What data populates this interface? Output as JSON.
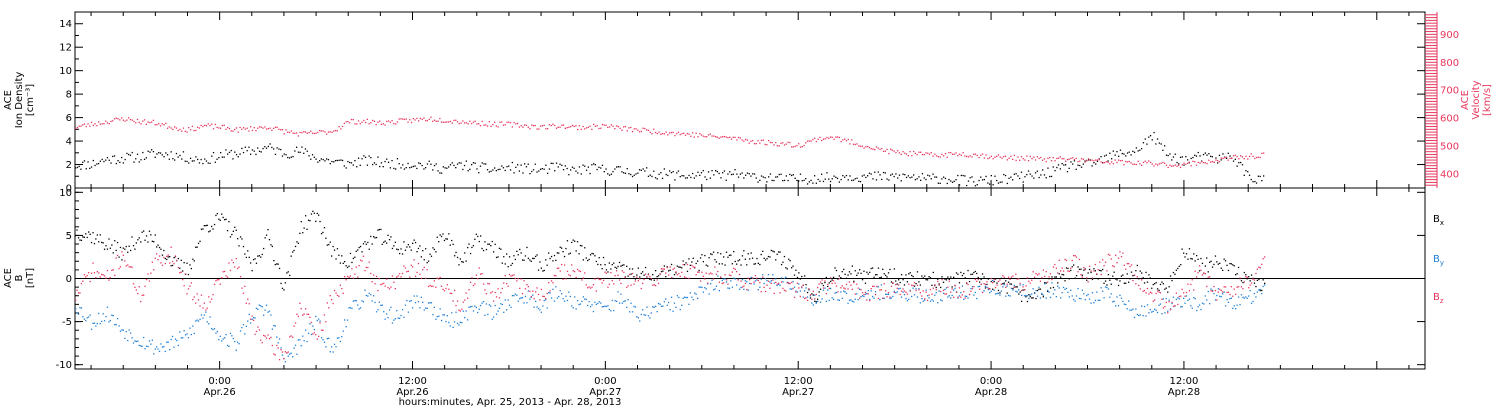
{
  "chart_data": [
    {
      "type": "scatter",
      "panel": "plasma",
      "ylabel": [
        "ACE",
        "Ion Density",
        "[cm⁻³]"
      ],
      "ylim": [
        0,
        15
      ],
      "yticks": [
        "0",
        "2",
        "4",
        "6",
        "8",
        "10",
        "12",
        "14"
      ],
      "y2label": [
        "ACE",
        "Velocity",
        "[km/s]"
      ],
      "y2lim": [
        350,
        980
      ],
      "y2ticks": [
        "400",
        "500",
        "600",
        "700",
        "800",
        "900"
      ],
      "xlim_hours": [
        -9,
        75
      ],
      "series": [
        {
          "name": "Ion Density",
          "color": "#000000",
          "axis": "left",
          "x_hours": [
            -9,
            -8,
            -7,
            -6,
            -5,
            -4,
            -3,
            -2,
            -1,
            0,
            1,
            2,
            3,
            4,
            5,
            6,
            7,
            8,
            9,
            10,
            11,
            12,
            13,
            14,
            15,
            16,
            17,
            18,
            19,
            20,
            21,
            22,
            23,
            24,
            25,
            26,
            27,
            28,
            29,
            30,
            31,
            32,
            33,
            34,
            35,
            36,
            37,
            38,
            39,
            40,
            41,
            42,
            43,
            44,
            45,
            46,
            47,
            48,
            49,
            50,
            51,
            52,
            53,
            54,
            55,
            56,
            57,
            58,
            59,
            60,
            61,
            62,
            63,
            64,
            65
          ],
          "y": [
            2.0,
            2.1,
            2.5,
            2.6,
            2.7,
            3.0,
            2.9,
            2.6,
            2.4,
            2.8,
            3.0,
            3.2,
            3.5,
            3.0,
            3.2,
            2.6,
            2.3,
            2.1,
            2.4,
            2.2,
            2.1,
            2.1,
            1.9,
            1.7,
            2.0,
            1.8,
            1.6,
            1.8,
            1.7,
            1.6,
            1.8,
            1.5,
            1.7,
            1.6,
            1.5,
            1.4,
            1.3,
            1.2,
            1.1,
            1.2,
            1.1,
            1.2,
            1.0,
            1.0,
            0.8,
            0.8,
            0.9,
            0.9,
            1.1,
            1.0,
            1.0,
            1.0,
            1.0,
            0.8,
            0.9,
            0.7,
            0.6,
            0.7,
            0.8,
            1.0,
            1.2,
            1.5,
            2.0,
            2.0,
            2.5,
            3.0,
            3.2,
            4.5,
            2.8,
            2.4,
            2.7,
            2.5,
            2.8,
            1.0,
            0.7
          ]
        },
        {
          "name": "Velocity",
          "color": "#e8365d",
          "axis": "right",
          "x_hours": [
            -9,
            -8,
            -7,
            -6,
            -5,
            -4,
            -3,
            -2,
            -1,
            0,
            1,
            2,
            3,
            4,
            5,
            6,
            7,
            8,
            9,
            10,
            11,
            12,
            13,
            14,
            15,
            16,
            17,
            18,
            19,
            20,
            21,
            22,
            23,
            24,
            25,
            26,
            27,
            28,
            29,
            30,
            31,
            32,
            33,
            34,
            35,
            36,
            37,
            38,
            39,
            40,
            41,
            42,
            43,
            44,
            45,
            46,
            47,
            48,
            49,
            50,
            51,
            52,
            53,
            54,
            55,
            56,
            57,
            58,
            59,
            60,
            61,
            62,
            63,
            64,
            65
          ],
          "y": [
            570,
            580,
            590,
            600,
            590,
            585,
            570,
            560,
            575,
            570,
            560,
            565,
            570,
            555,
            545,
            550,
            555,
            590,
            590,
            585,
            590,
            595,
            600,
            595,
            590,
            585,
            580,
            580,
            575,
            570,
            575,
            570,
            570,
            575,
            565,
            560,
            555,
            550,
            545,
            540,
            535,
            530,
            520,
            515,
            510,
            505,
            525,
            535,
            520,
            505,
            490,
            480,
            475,
            470,
            470,
            475,
            470,
            465,
            460,
            460,
            455,
            455,
            455,
            450,
            445,
            445,
            440,
            440,
            435,
            435,
            445,
            450,
            460,
            465,
            470
          ]
        }
      ]
    },
    {
      "type": "scatter",
      "panel": "magnetic-field",
      "ylabel": [
        "ACE",
        "B",
        "[nT]"
      ],
      "ylim": [
        -10.5,
        10.5
      ],
      "yticks": [
        "-10",
        "-5",
        "0",
        "5",
        "10"
      ],
      "xlim_hours": [
        -9,
        75
      ],
      "zero_line": true,
      "series": [
        {
          "name": "B",
          "subscript": "x",
          "color": "#000000",
          "x_hours": [
            -9,
            -8,
            -7,
            -6,
            -5,
            -4,
            -3,
            -2,
            -1,
            0,
            1,
            2,
            3,
            4,
            5,
            6,
            7,
            8,
            9,
            10,
            11,
            12,
            13,
            14,
            15,
            16,
            17,
            18,
            19,
            20,
            21,
            22,
            23,
            24,
            25,
            26,
            27,
            28,
            29,
            30,
            31,
            32,
            33,
            34,
            35,
            36,
            37,
            38,
            39,
            40,
            41,
            42,
            43,
            44,
            45,
            46,
            47,
            48,
            49,
            50,
            51,
            52,
            53,
            54,
            55,
            56,
            57,
            58,
            59,
            60,
            61,
            62,
            63,
            64,
            65
          ],
          "y": [
            5.5,
            5.0,
            4.0,
            3.0,
            5.0,
            4.5,
            2.0,
            1.0,
            6.0,
            7.0,
            5.0,
            1.5,
            5.0,
            -1.0,
            6.0,
            7.5,
            3.0,
            2.0,
            4.0,
            5.0,
            3.5,
            4.0,
            2.5,
            5.5,
            2.0,
            4.5,
            3.5,
            2.0,
            3.0,
            1.5,
            3.0,
            4.0,
            2.5,
            1.5,
            1.0,
            0.5,
            0.5,
            0.8,
            1.5,
            2.0,
            2.5,
            2.5,
            2.5,
            2.6,
            2.5,
            0.5,
            -2.0,
            0.5,
            1.0,
            0.0,
            1.0,
            0.3,
            0.0,
            0.2,
            -0.5,
            0.2,
            0.0,
            -0.5,
            -1.0,
            -2.0,
            -1.5,
            0.0,
            0.8,
            0.5,
            0.2,
            0.0,
            1.0,
            -0.5,
            -1.0,
            3.5,
            1.5,
            2.0,
            1.0,
            0.0,
            -1.0
          ]
        },
        {
          "name": "B",
          "subscript": "y",
          "color": "#1f7fd6",
          "x_hours": [
            -9,
            -8,
            -7,
            -6,
            -5,
            -4,
            -3,
            -2,
            -1,
            0,
            1,
            2,
            3,
            4,
            5,
            6,
            7,
            8,
            9,
            10,
            11,
            12,
            13,
            14,
            15,
            16,
            17,
            18,
            19,
            20,
            21,
            22,
            23,
            24,
            25,
            26,
            27,
            28,
            29,
            30,
            31,
            32,
            33,
            34,
            35,
            36,
            37,
            38,
            39,
            40,
            41,
            42,
            43,
            44,
            45,
            46,
            47,
            48,
            49,
            50,
            51,
            52,
            53,
            54,
            55,
            56,
            57,
            58,
            59,
            60,
            61,
            62,
            63,
            64,
            65
          ],
          "y": [
            -3.0,
            -5.0,
            -4.0,
            -6.0,
            -7.0,
            -8.0,
            -7.5,
            -6.5,
            -4.0,
            -6.5,
            -7.5,
            -4.0,
            -3.5,
            -9.5,
            -7.5,
            -5.0,
            -8.5,
            -4.0,
            -2.0,
            -3.5,
            -4.5,
            -2.5,
            -3.0,
            -5.0,
            -4.5,
            -3.0,
            -4.0,
            -2.5,
            -2.0,
            -3.0,
            -1.5,
            -2.5,
            -3.0,
            -3.5,
            -2.0,
            -4.5,
            -3.5,
            -3.0,
            -2.5,
            -1.5,
            -0.5,
            -0.2,
            -0.5,
            -0.3,
            0.0,
            -1.0,
            -2.5,
            -1.5,
            -2.0,
            -1.5,
            -1.5,
            -2.0,
            -1.8,
            -2.0,
            -1.8,
            -1.5,
            -1.5,
            -1.0,
            -1.5,
            -1.5,
            -1.5,
            -1.2,
            -1.5,
            -2.5,
            -1.5,
            -2.5,
            -4.0,
            -3.5,
            -3.0,
            -2.5,
            -3.0,
            -1.5,
            -3.0,
            -2.0,
            -1.5
          ]
        },
        {
          "name": "B",
          "subscript": "z",
          "color": "#e8365d",
          "x_hours": [
            -9,
            -8,
            -7,
            -6,
            -5,
            -4,
            -3,
            -2,
            -1,
            0,
            1,
            2,
            3,
            4,
            5,
            6,
            7,
            8,
            9,
            10,
            11,
            12,
            13,
            14,
            15,
            16,
            17,
            18,
            19,
            20,
            21,
            22,
            23,
            24,
            25,
            26,
            27,
            28,
            29,
            30,
            31,
            32,
            33,
            34,
            35,
            36,
            37,
            38,
            39,
            40,
            41,
            42,
            43,
            44,
            45,
            46,
            47,
            48,
            49,
            50,
            51,
            52,
            53,
            54,
            55,
            56,
            57,
            58,
            59,
            60,
            61,
            62,
            63,
            64,
            65
          ],
          "y": [
            -2.0,
            1.0,
            0.0,
            3.0,
            -2.0,
            2.0,
            3.0,
            -1.0,
            -3.0,
            0.0,
            2.0,
            -5.0,
            -7.5,
            -9.0,
            -3.0,
            -7.0,
            -2.0,
            0.0,
            2.0,
            -1.0,
            0.0,
            1.5,
            0.0,
            -1.0,
            -3.0,
            1.0,
            -2.0,
            0.0,
            -1.0,
            -2.0,
            0.5,
            1.5,
            -1.0,
            0.0,
            0.0,
            -0.5,
            0.0,
            1.0,
            1.0,
            0.5,
            0.5,
            0.3,
            -0.5,
            -0.8,
            -1.0,
            -1.5,
            -1.5,
            -0.5,
            -1.0,
            -1.5,
            -1.5,
            -1.0,
            -1.2,
            -1.5,
            -1.0,
            -1.5,
            -0.8,
            -0.5,
            -0.5,
            -0.3,
            0.0,
            1.0,
            2.0,
            0.5,
            1.5,
            3.0,
            0.0,
            -1.5,
            -3.0,
            -2.0,
            1.0,
            -1.5,
            -1.0,
            -0.5,
            2.0
          ]
        }
      ]
    }
  ],
  "x_axis": {
    "ticks": [
      {
        "hours": 0,
        "time": "0:00",
        "date": "Apr.26"
      },
      {
        "hours": 12,
        "time": "12:00",
        "date": "Apr.26"
      },
      {
        "hours": 24,
        "time": "0:00",
        "date": "Apr.27"
      },
      {
        "hours": 36,
        "time": "12:00",
        "date": "Apr.27"
      },
      {
        "hours": 48,
        "time": "0:00",
        "date": "Apr.28"
      },
      {
        "hours": 60,
        "time": "12:00",
        "date": "Apr.28"
      }
    ],
    "label": "hours:minutes, Apr. 25, 2013 - Apr. 28, 2013"
  },
  "colors": {
    "black": "#000000",
    "blue": "#1f7fd6",
    "pink": "#e8365d"
  }
}
